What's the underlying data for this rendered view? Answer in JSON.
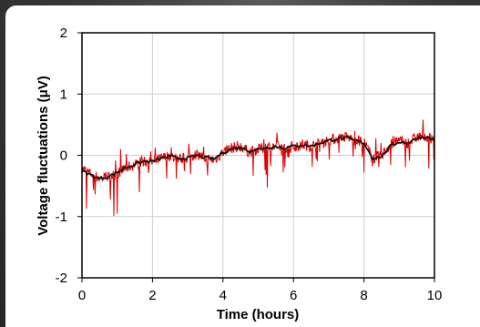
{
  "colors": {
    "noisy_series": "#dd0000",
    "smoothed_series": "#111111",
    "grid": "#cfcfcf",
    "card": "#ffffff"
  },
  "chart_data": {
    "type": "line",
    "title": "",
    "xlabel": "Time (hours)",
    "ylabel": "Voltage fluctuations (μV)",
    "xlim": [
      0,
      10
    ],
    "ylim": [
      -2,
      2
    ],
    "xticks": [
      "0",
      "2",
      "4",
      "6",
      "8",
      "10"
    ],
    "yticks": [
      "2",
      "1",
      "0",
      "-1",
      "-2"
    ],
    "grid": true,
    "legend": "none",
    "series": [
      {
        "style": "noisy",
        "color": "#dd0000",
        "x": [
          0,
          0.25,
          0.5,
          0.75,
          1,
          1.25,
          1.5,
          1.75,
          2,
          2.25,
          2.5,
          2.75,
          3,
          3.25,
          3.5,
          3.75,
          4,
          4.25,
          4.5,
          4.75,
          5,
          5.25,
          5.5,
          5.75,
          6,
          6.25,
          6.5,
          6.75,
          7,
          7.25,
          7.5,
          7.75,
          8,
          8.25,
          8.5,
          8.75,
          9,
          9.25,
          9.5,
          9.75,
          10
        ],
        "y": [
          -0.22,
          -0.3,
          -0.38,
          -0.35,
          -0.3,
          -0.2,
          -0.15,
          -0.1,
          -0.12,
          -0.05,
          0,
          -0.05,
          -0.05,
          0.02,
          -0.05,
          -0.08,
          0.05,
          0.12,
          0.15,
          0.05,
          0.1,
          0.14,
          0.15,
          0.12,
          0.15,
          0.18,
          0.15,
          0.2,
          0.25,
          0.28,
          0.3,
          0.25,
          0.22,
          -0.05,
          0,
          0.18,
          0.25,
          0.2,
          0.3,
          0.32,
          0.25
        ],
        "min_dips": [
          -1.0,
          -1.3,
          -1.0,
          -0.9,
          -1.15,
          -0.85,
          -1.25,
          -0.6,
          -0.5,
          -0.6,
          -0.5,
          -0.55,
          -0.45,
          -0.35,
          -0.55,
          -0.45,
          -0.3,
          -0.35,
          -0.2,
          -0.3,
          -0.4,
          -0.6,
          -0.3,
          -0.3,
          -0.2,
          -0.25,
          -0.3,
          -0.2,
          -0.1,
          -0.1,
          -0.2,
          -0.1,
          -0.3,
          -0.8,
          -0.75,
          -0.6,
          -0.55,
          -0.3,
          -0.5,
          -0.2,
          -0.3
        ],
        "max_peaks": [
          0.1,
          0.0,
          -0.05,
          0.05,
          0.1,
          0.15,
          0.12,
          0.15,
          0.1,
          0.2,
          0.25,
          0.2,
          0.25,
          0.3,
          0.2,
          0.22,
          0.35,
          0.4,
          0.45,
          0.35,
          0.35,
          0.4,
          0.45,
          0.45,
          0.42,
          0.5,
          0.45,
          0.45,
          0.5,
          0.55,
          0.55,
          0.5,
          0.4,
          0.35,
          0.3,
          0.45,
          0.5,
          0.45,
          0.55,
          0.65,
          0.55
        ]
      },
      {
        "style": "smoothed",
        "color": "#111111",
        "x": [
          0,
          0.25,
          0.5,
          0.75,
          1,
          1.25,
          1.5,
          1.75,
          2,
          2.25,
          2.5,
          2.75,
          3,
          3.25,
          3.5,
          3.75,
          4,
          4.25,
          4.5,
          4.75,
          5,
          5.25,
          5.5,
          5.75,
          6,
          6.25,
          6.5,
          6.75,
          7,
          7.25,
          7.5,
          7.75,
          8,
          8.25,
          8.5,
          8.75,
          9,
          9.25,
          9.5,
          9.75,
          10
        ],
        "y": [
          -0.25,
          -0.32,
          -0.38,
          -0.35,
          -0.28,
          -0.2,
          -0.15,
          -0.1,
          -0.1,
          -0.05,
          -0.02,
          -0.05,
          -0.05,
          0.0,
          -0.04,
          -0.06,
          0.05,
          0.1,
          0.13,
          0.07,
          0.1,
          0.13,
          0.14,
          0.12,
          0.15,
          0.17,
          0.15,
          0.2,
          0.24,
          0.27,
          0.28,
          0.24,
          0.2,
          -0.05,
          -0.02,
          0.15,
          0.22,
          0.2,
          0.28,
          0.3,
          0.25
        ]
      }
    ]
  }
}
